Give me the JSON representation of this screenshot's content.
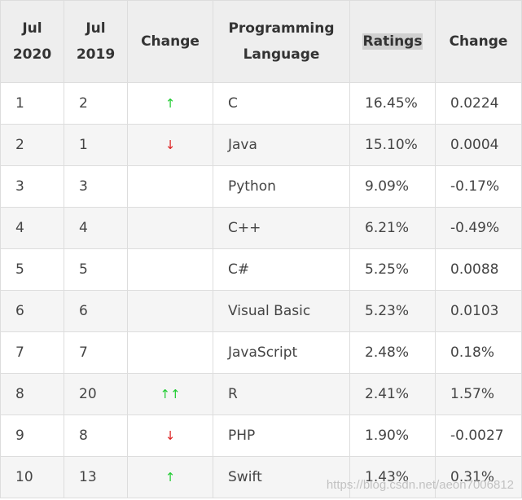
{
  "headers": {
    "jul2020": "Jul 2020",
    "jul2019": "Jul 2019",
    "change": "Change",
    "language": "Programming Language",
    "ratings": "Ratings",
    "change2": "Change"
  },
  "rows": [
    {
      "jul2020": "1",
      "jul2019": "2",
      "arrow": "↑",
      "arrow_dir": "up",
      "language": "C",
      "rating": "16.45%",
      "change": "0.0224"
    },
    {
      "jul2020": "2",
      "jul2019": "1",
      "arrow": "↓",
      "arrow_dir": "down",
      "language": "Java",
      "rating": "15.10%",
      "change": "0.0004"
    },
    {
      "jul2020": "3",
      "jul2019": "3",
      "arrow": "",
      "arrow_dir": "none",
      "language": "Python",
      "rating": "9.09%",
      "change": "-0.17%"
    },
    {
      "jul2020": "4",
      "jul2019": "4",
      "arrow": "",
      "arrow_dir": "none",
      "language": "C++",
      "rating": "6.21%",
      "change": "-0.49%"
    },
    {
      "jul2020": "5",
      "jul2019": "5",
      "arrow": "",
      "arrow_dir": "none",
      "language": "C#",
      "rating": "5.25%",
      "change": "0.0088"
    },
    {
      "jul2020": "6",
      "jul2019": "6",
      "arrow": "",
      "arrow_dir": "none",
      "language": "Visual Basic",
      "rating": "5.23%",
      "change": "0.0103"
    },
    {
      "jul2020": "7",
      "jul2019": "7",
      "arrow": "",
      "arrow_dir": "none",
      "language": "JavaScript",
      "rating": "2.48%",
      "change": "0.18%"
    },
    {
      "jul2020": "8",
      "jul2019": "20",
      "arrow": "↑↑",
      "arrow_dir": "up",
      "language": "R",
      "rating": "2.41%",
      "change": "1.57%"
    },
    {
      "jul2020": "9",
      "jul2019": "8",
      "arrow": "↓",
      "arrow_dir": "down",
      "language": "PHP",
      "rating": "1.90%",
      "change": "-0.0027"
    },
    {
      "jul2020": "10",
      "jul2019": "13",
      "arrow": "↑",
      "arrow_dir": "up",
      "language": "Swift",
      "rating": "1.43%",
      "change": "0.31%"
    }
  ],
  "watermark": "https://blog.csdn.net/aeon7006812",
  "colors": {
    "header_bg": "#eeeeee",
    "row_alt_bg": "#f5f5f5",
    "border": "#dddddd",
    "arrow_up": "#22cc33",
    "arrow_down": "#dd2222",
    "highlight": "#d0d0d0"
  }
}
